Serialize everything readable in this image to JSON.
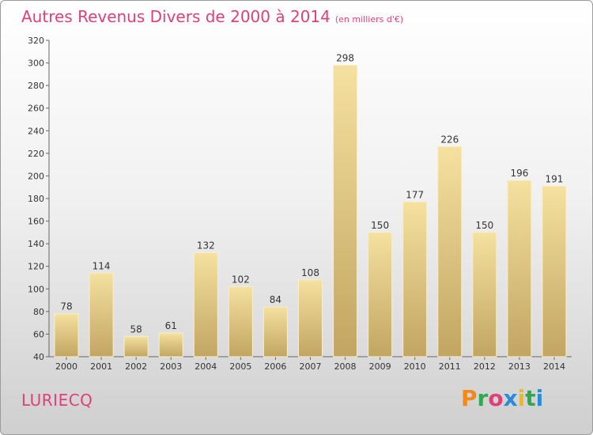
{
  "title": "Autres Revenus Divers de 2000 à 2014",
  "unit": "(en milliers d'€)",
  "location": "LURIECQ",
  "logo_text": "Proxiti",
  "colors": {
    "title": "#e0407a",
    "bar_top": "#f5e1a0",
    "bar_bottom": "#c2a562",
    "axis": "#666666"
  },
  "chart_data": {
    "type": "bar",
    "categories": [
      "2000",
      "2001",
      "2002",
      "2003",
      "2004",
      "2005",
      "2006",
      "2007",
      "2008",
      "2009",
      "2010",
      "2011",
      "2012",
      "2013",
      "2014"
    ],
    "values": [
      78,
      114,
      58,
      61,
      132,
      102,
      84,
      108,
      298,
      150,
      177,
      226,
      150,
      196,
      191
    ],
    "ylim": [
      40,
      320
    ],
    "yticks": [
      40,
      60,
      80,
      100,
      120,
      140,
      160,
      180,
      200,
      220,
      240,
      260,
      280,
      300,
      320
    ],
    "title": "Autres Revenus Divers de 2000 à 2014",
    "xlabel": "",
    "ylabel": "",
    "grid": false,
    "legend": "none"
  }
}
